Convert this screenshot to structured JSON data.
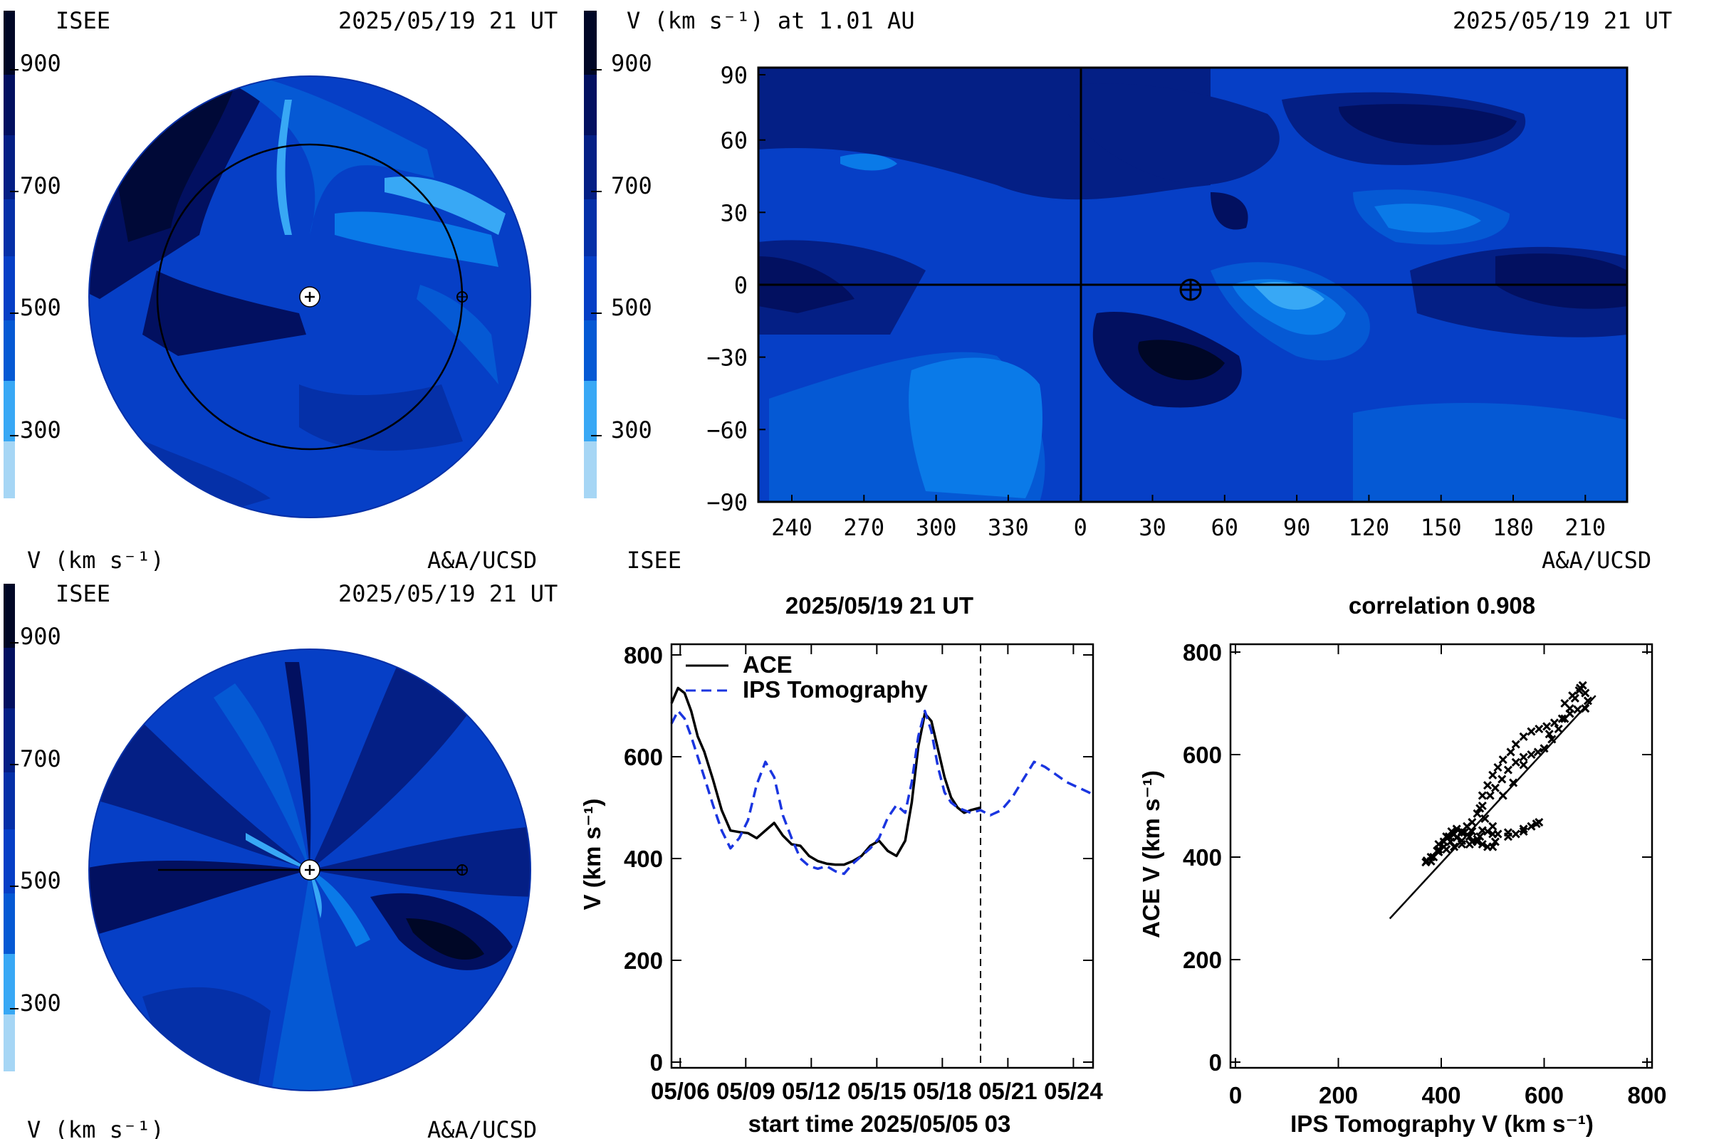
{
  "panels": {
    "top_left": {
      "org": "ISEE",
      "timestamp": "2025/05/19 21 UT",
      "colorbar_label": "V (km s⁻¹)",
      "credit": "A&A/UCSD"
    },
    "bottom_left": {
      "org": "ISEE",
      "timestamp": "2025/05/19 21 UT",
      "colorbar_label": "V (km s⁻¹)",
      "credit": "A&A/UCSD"
    },
    "top_right": {
      "title": "V (km s⁻¹) at 1.01 AU",
      "timestamp": "2025/05/19 21 UT",
      "org": "ISEE",
      "credit": "A&A/UCSD"
    }
  },
  "colorbar": {
    "ticks": [
      "900",
      "700",
      "500",
      "300"
    ],
    "colors": [
      "#a6d6f5",
      "#38a8f5",
      "#0a7ae8",
      "#0559d4",
      "#063fc6",
      "#0530a8",
      "#041f85",
      "#021060",
      "#000726"
    ]
  },
  "chart_data": [
    {
      "type": "heatmap",
      "name": "carrington-map",
      "xticks": [
        "240",
        "270",
        "300",
        "330",
        "0",
        "30",
        "60",
        "90",
        "120",
        "150",
        "180",
        "210"
      ],
      "yticks": [
        "90",
        "60",
        "30",
        "0",
        "−30",
        "−60",
        "−90"
      ],
      "ylim": [
        -90,
        90
      ],
      "earth_position": {
        "lon": 45,
        "lat": 0
      }
    },
    {
      "type": "line",
      "title": "2025/05/19 21 UT",
      "xlabel": "start time 2025/05/05 03",
      "ylabel": "V (km s⁻¹)",
      "xticks": [
        "05/06",
        "05/09",
        "05/12",
        "05/15",
        "05/18",
        "05/21",
        "05/24"
      ],
      "yticks": [
        "0",
        "200",
        "400",
        "600",
        "800"
      ],
      "ylim": [
        0,
        800
      ],
      "xlim_days": [
        0.6,
        19.9
      ],
      "now_marker_day": 14.75,
      "series": [
        {
          "name": "ACE",
          "color": "#000000",
          "dash": "solid",
          "x": [
            0.6,
            0.9,
            1.2,
            1.5,
            1.8,
            2.1,
            2.5,
            2.9,
            3.3,
            3.7,
            4.1,
            4.5,
            4.9,
            5.3,
            5.7,
            6.1,
            6.5,
            6.9,
            7.3,
            7.7,
            8.1,
            8.5,
            8.9,
            9.3,
            9.7,
            10.1,
            10.5,
            10.9,
            11.3,
            11.6,
            11.9,
            12.2,
            12.5,
            12.8,
            13.1,
            13.4,
            13.7,
            14.0,
            14.3,
            14.75
          ],
          "y": [
            705,
            735,
            725,
            690,
            640,
            610,
            555,
            495,
            455,
            452,
            450,
            440,
            455,
            470,
            445,
            428,
            425,
            405,
            395,
            390,
            388,
            388,
            395,
            405,
            425,
            435,
            415,
            405,
            435,
            510,
            620,
            685,
            670,
            615,
            560,
            520,
            500,
            490,
            495,
            500
          ]
        },
        {
          "name": "IPS Tomography",
          "color": "#1a35e0",
          "dash": "dashed",
          "x": [
            0.6,
            0.9,
            1.2,
            1.5,
            1.8,
            2.1,
            2.5,
            2.9,
            3.3,
            3.7,
            4.1,
            4.5,
            4.9,
            5.3,
            5.7,
            6.1,
            6.5,
            6.9,
            7.3,
            7.7,
            8.1,
            8.5,
            8.9,
            9.3,
            9.7,
            10.1,
            10.5,
            10.9,
            11.3,
            11.6,
            11.9,
            12.2,
            12.5,
            12.8,
            13.1,
            13.4,
            13.7,
            14.0,
            14.3,
            14.75,
            15.2,
            15.7,
            16.2,
            16.7,
            17.2,
            17.7,
            18.2,
            18.7,
            19.2,
            19.7,
            19.9
          ],
          "y": [
            665,
            690,
            675,
            640,
            600,
            560,
            505,
            455,
            420,
            440,
            475,
            545,
            590,
            560,
            485,
            440,
            400,
            385,
            380,
            385,
            375,
            370,
            390,
            405,
            420,
            440,
            480,
            505,
            490,
            550,
            640,
            690,
            650,
            580,
            530,
            510,
            500,
            495,
            490,
            495,
            485,
            495,
            520,
            555,
            590,
            580,
            565,
            550,
            540,
            530,
            525
          ]
        }
      ],
      "legend_position": "top-left"
    },
    {
      "type": "scatter",
      "title": "correlation 0.908",
      "xlabel": "IPS Tomography V (km s⁻¹)",
      "ylabel": "ACE V (km s⁻¹)",
      "xticks": [
        "0",
        "200",
        "400",
        "600",
        "800"
      ],
      "yticks": [
        "0",
        "200",
        "400",
        "600",
        "800"
      ],
      "xlim": [
        0,
        800
      ],
      "ylim": [
        0,
        800
      ],
      "fit_line": {
        "x": [
          300,
          700
        ],
        "y": [
          280,
          715
        ]
      },
      "points": [
        [
          370,
          390
        ],
        [
          380,
          392
        ],
        [
          385,
          400
        ],
        [
          395,
          415
        ],
        [
          405,
          430
        ],
        [
          415,
          440
        ],
        [
          425,
          445
        ],
        [
          440,
          448
        ],
        [
          455,
          440
        ],
        [
          470,
          435
        ],
        [
          480,
          425
        ],
        [
          490,
          420
        ],
        [
          500,
          420
        ],
        [
          505,
          430
        ],
        [
          500,
          445
        ],
        [
          480,
          452
        ],
        [
          460,
          450
        ],
        [
          445,
          448
        ],
        [
          430,
          455
        ],
        [
          420,
          450
        ],
        [
          410,
          440
        ],
        [
          395,
          425
        ],
        [
          395,
          410
        ],
        [
          410,
          415
        ],
        [
          425,
          420
        ],
        [
          440,
          425
        ],
        [
          460,
          430
        ],
        [
          475,
          440
        ],
        [
          490,
          450
        ],
        [
          510,
          445
        ],
        [
          530,
          440
        ],
        [
          545,
          445
        ],
        [
          560,
          455
        ],
        [
          575,
          460
        ],
        [
          585,
          465
        ],
        [
          590,
          468
        ],
        [
          560,
          450
        ],
        [
          530,
          448
        ],
        [
          500,
          460
        ],
        [
          485,
          475
        ],
        [
          475,
          495
        ],
        [
          480,
          520
        ],
        [
          490,
          540
        ],
        [
          500,
          560
        ],
        [
          510,
          575
        ],
        [
          520,
          590
        ],
        [
          535,
          605
        ],
        [
          545,
          620
        ],
        [
          560,
          635
        ],
        [
          575,
          645
        ],
        [
          590,
          650
        ],
        [
          605,
          655
        ],
        [
          620,
          662
        ],
        [
          635,
          670
        ],
        [
          650,
          680
        ],
        [
          665,
          688
        ],
        [
          680,
          690
        ],
        [
          685,
          705
        ],
        [
          680,
          720
        ],
        [
          675,
          735
        ],
        [
          668,
          725
        ],
        [
          660,
          710
        ],
        [
          650,
          690
        ],
        [
          640,
          670
        ],
        [
          628,
          650
        ],
        [
          615,
          630
        ],
        [
          600,
          612
        ],
        [
          588,
          605
        ],
        [
          575,
          600
        ],
        [
          560,
          595
        ],
        [
          545,
          585
        ],
        [
          530,
          570
        ],
        [
          518,
          552
        ],
        [
          505,
          535
        ],
        [
          495,
          520
        ],
        [
          480,
          500
        ],
        [
          470,
          485
        ],
        [
          460,
          468
        ],
        [
          450,
          460
        ],
        [
          440,
          450
        ],
        [
          430,
          438
        ],
        [
          418,
          430
        ],
        [
          405,
          420
        ],
        [
          392,
          412
        ],
        [
          380,
          400
        ],
        [
          372,
          393
        ],
        [
          470,
          430
        ],
        [
          455,
          425
        ],
        [
          440,
          432
        ],
        [
          520,
          520
        ],
        [
          540,
          545
        ],
        [
          560,
          580
        ],
        [
          610,
          640
        ],
        [
          640,
          700
        ],
        [
          655,
          715
        ],
        [
          670,
          730
        ]
      ]
    }
  ]
}
